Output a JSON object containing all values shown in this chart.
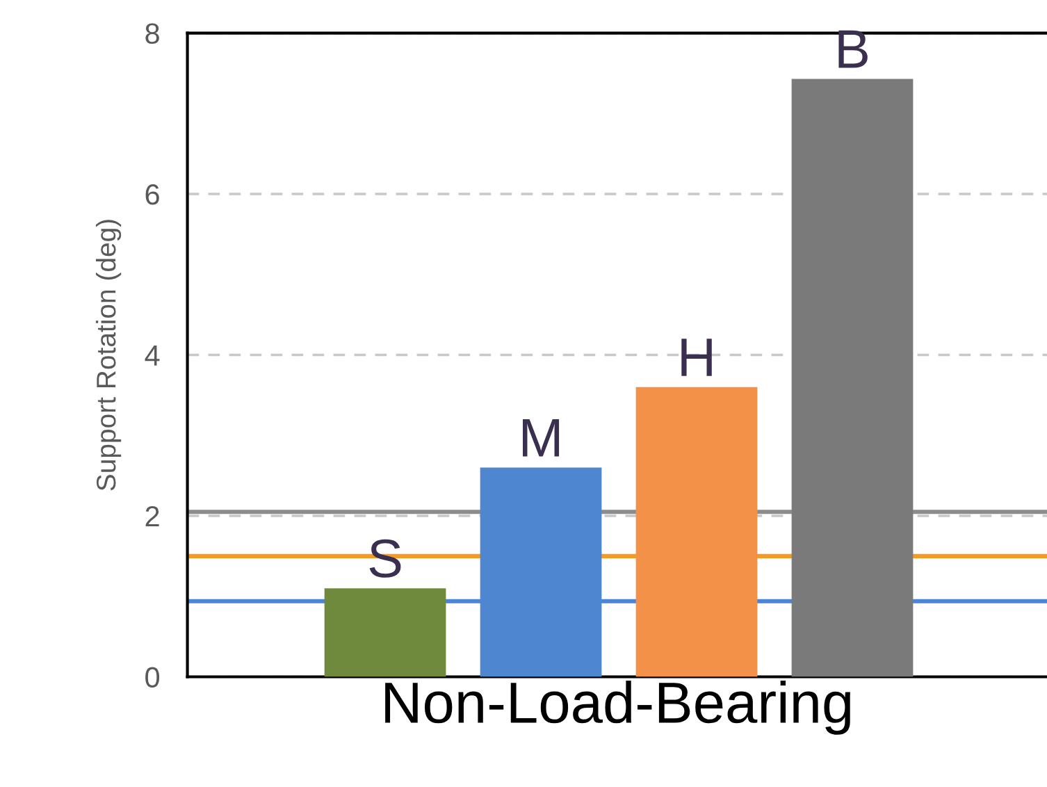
{
  "chart_data": {
    "type": "bar",
    "ylabel": "Support Rotation (deg)",
    "xlabel": "Non-Load-Bearing",
    "categories": [
      null,
      null,
      null,
      null
    ],
    "values": [
      1.1,
      2.6,
      3.6,
      7.43
    ],
    "colors": [
      "#6f8a3c",
      "#4f86d0",
      "#f39149",
      "#7a7a7a"
    ],
    "value_labels": [
      "S",
      "M",
      "H",
      "B"
    ],
    "ref_lines": [
      {
        "axis": "y",
        "value": 2.05,
        "color": "#8c8c8c",
        "line_style": "solid"
      },
      {
        "axis": "y",
        "value": 1.5,
        "color": "#f59a23",
        "line_style": "solid"
      },
      {
        "axis": "y",
        "value": 0.94,
        "color": "#4a86d4",
        "line_style": "solid"
      }
    ],
    "ylim": [
      0,
      8
    ],
    "yticks": [
      0,
      2,
      4,
      6,
      8
    ],
    "grid": "y",
    "legend": false
  }
}
